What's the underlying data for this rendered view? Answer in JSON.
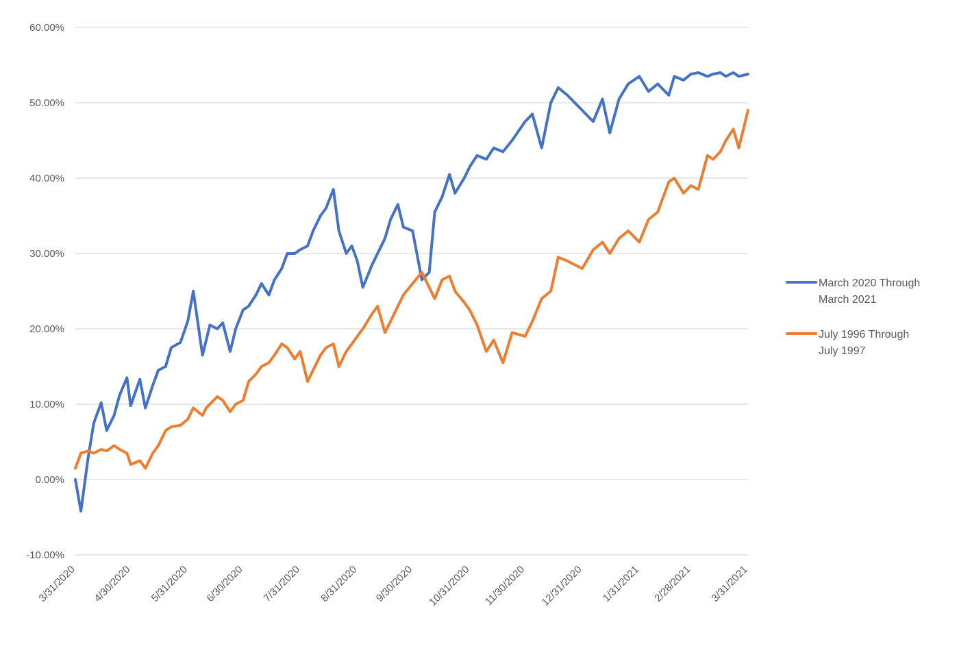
{
  "chart_data": {
    "type": "line",
    "title": "",
    "xlabel": "",
    "ylabel": "",
    "ylim": [
      -10,
      60
    ],
    "y_unit": "%",
    "y_ticks": [
      -10,
      0,
      10,
      20,
      30,
      40,
      50,
      60
    ],
    "y_tick_labels": [
      "-10.00%",
      "0.00%",
      "10.00%",
      "20.00%",
      "30.00%",
      "40.00%",
      "50.00%",
      "60.00%"
    ],
    "x_tick_labels": [
      "3/31/2020",
      "4/30/2020",
      "5/31/2020",
      "6/30/2020",
      "7/31/2020",
      "8/31/2020",
      "9/30/2020",
      "10/31/2020",
      "11/30/2020",
      "12/31/2020",
      "1/31/2021",
      "2/28/2021",
      "3/31/2021"
    ],
    "grid": true,
    "legend_position": "right",
    "series": [
      {
        "name": "March 2020 Through March 2021",
        "legend_lines": [
          "March 2020 Through",
          "March 2021"
        ],
        "color": "#4472C4",
        "x": [
          "3/31/2020",
          "4/3/2020",
          "4/7/2020",
          "4/10/2020",
          "4/14/2020",
          "4/17/2020",
          "4/21/2020",
          "4/24/2020",
          "4/28/2020",
          "4/30/2020",
          "5/5/2020",
          "5/8/2020",
          "5/12/2020",
          "5/15/2020",
          "5/19/2020",
          "5/22/2020",
          "5/27/2020",
          "5/31/2020",
          "6/3/2020",
          "6/8/2020",
          "6/10/2020",
          "6/12/2020",
          "6/16/2020",
          "6/19/2020",
          "6/23/2020",
          "6/26/2020",
          "6/30/2020",
          "7/3/2020",
          "7/7/2020",
          "7/10/2020",
          "7/14/2020",
          "7/17/2020",
          "7/21/2020",
          "7/24/2020",
          "7/28/2020",
          "7/31/2020",
          "8/4/2020",
          "8/7/2020",
          "8/11/2020",
          "8/14/2020",
          "8/18/2020",
          "8/21/2020",
          "8/25/2020",
          "8/28/2020",
          "8/31/2020",
          "9/3/2020",
          "9/8/2020",
          "9/11/2020",
          "9/15/2020",
          "9/18/2020",
          "9/22/2020",
          "9/25/2020",
          "9/30/2020",
          "10/5/2020",
          "10/9/2020",
          "10/12/2020",
          "10/16/2020",
          "10/20/2020",
          "10/23/2020",
          "10/28/2020",
          "10/31/2020",
          "11/4/2020",
          "11/9/2020",
          "11/13/2020",
          "11/18/2020",
          "11/23/2020",
          "11/30/2020",
          "12/4/2020",
          "12/9/2020",
          "12/14/2020",
          "12/18/2020",
          "12/23/2020",
          "12/31/2020",
          "1/6/2021",
          "1/11/2021",
          "1/15/2021",
          "1/20/2021",
          "1/25/2021",
          "1/31/2021",
          "2/5/2021",
          "2/10/2021",
          "2/16/2021",
          "2/19/2021",
          "2/24/2021",
          "2/28/2021",
          "3/4/2021",
          "3/9/2021",
          "3/12/2021",
          "3/16/2021",
          "3/19/2021",
          "3/23/2021",
          "3/26/2021",
          "3/31/2021"
        ],
        "values": [
          0.0,
          -4.2,
          3.0,
          7.5,
          10.2,
          6.5,
          8.5,
          11.2,
          13.5,
          9.8,
          13.3,
          9.5,
          12.5,
          14.5,
          15.0,
          17.5,
          18.2,
          21.0,
          25.0,
          16.5,
          18.5,
          20.5,
          20.0,
          20.8,
          17.0,
          20.0,
          22.5,
          23.0,
          24.5,
          26.0,
          24.5,
          26.5,
          28.0,
          30.0,
          30.0,
          30.5,
          31.0,
          33.0,
          35.0,
          36.0,
          38.5,
          33.0,
          30.0,
          31.0,
          29.0,
          25.5,
          28.5,
          30.0,
          32.0,
          34.5,
          36.5,
          33.5,
          33.0,
          26.5,
          27.5,
          35.5,
          37.5,
          40.5,
          38.0,
          40.0,
          41.5,
          43.0,
          42.5,
          44.0,
          43.5,
          45.0,
          47.5,
          48.5,
          44.0,
          50.0,
          52.0,
          51.0,
          49.0,
          47.5,
          50.5,
          46.0,
          50.5,
          52.5,
          53.5,
          51.5,
          52.5,
          51.0,
          53.5,
          53.0,
          53.8,
          54.0,
          53.5,
          53.8,
          54.0,
          53.5,
          54.0,
          53.5,
          53.8
        ]
      },
      {
        "name": "July 1996 Through July 1997",
        "legend_lines": [
          "July 1996 Through",
          "July 1997"
        ],
        "color": "#ED7D31",
        "x": [
          "3/31/2020",
          "4/3/2020",
          "4/7/2020",
          "4/10/2020",
          "4/14/2020",
          "4/17/2020",
          "4/21/2020",
          "4/24/2020",
          "4/28/2020",
          "4/30/2020",
          "5/5/2020",
          "5/8/2020",
          "5/12/2020",
          "5/15/2020",
          "5/19/2020",
          "5/22/2020",
          "5/27/2020",
          "5/31/2020",
          "6/3/2020",
          "6/8/2020",
          "6/10/2020",
          "6/12/2020",
          "6/16/2020",
          "6/19/2020",
          "6/23/2020",
          "6/26/2020",
          "6/30/2020",
          "7/3/2020",
          "7/7/2020",
          "7/10/2020",
          "7/14/2020",
          "7/17/2020",
          "7/21/2020",
          "7/24/2020",
          "7/28/2020",
          "7/31/2020",
          "8/4/2020",
          "8/7/2020",
          "8/11/2020",
          "8/14/2020",
          "8/18/2020",
          "8/21/2020",
          "8/25/2020",
          "8/28/2020",
          "8/31/2020",
          "9/3/2020",
          "9/8/2020",
          "9/11/2020",
          "9/15/2020",
          "9/18/2020",
          "9/22/2020",
          "9/25/2020",
          "9/30/2020",
          "10/5/2020",
          "10/9/2020",
          "10/12/2020",
          "10/16/2020",
          "10/20/2020",
          "10/23/2020",
          "10/28/2020",
          "10/31/2020",
          "11/4/2020",
          "11/9/2020",
          "11/13/2020",
          "11/18/2020",
          "11/23/2020",
          "11/30/2020",
          "12/4/2020",
          "12/9/2020",
          "12/14/2020",
          "12/18/2020",
          "12/23/2020",
          "12/31/2020",
          "1/6/2021",
          "1/11/2021",
          "1/15/2021",
          "1/20/2021",
          "1/25/2021",
          "1/31/2021",
          "2/5/2021",
          "2/10/2021",
          "2/16/2021",
          "2/19/2021",
          "2/24/2021",
          "2/28/2021",
          "3/4/2021",
          "3/9/2021",
          "3/12/2021",
          "3/16/2021",
          "3/19/2021",
          "3/23/2021",
          "3/26/2021",
          "3/31/2021"
        ],
        "values": [
          1.5,
          3.5,
          3.8,
          3.5,
          4.0,
          3.8,
          4.5,
          4.0,
          3.5,
          2.0,
          2.5,
          1.5,
          3.5,
          4.5,
          6.5,
          7.0,
          7.2,
          8.0,
          9.5,
          8.5,
          9.5,
          10.0,
          11.0,
          10.5,
          9.0,
          10.0,
          10.5,
          13.0,
          14.0,
          15.0,
          15.5,
          16.5,
          18.0,
          17.5,
          16.0,
          17.0,
          13.0,
          14.5,
          16.5,
          17.5,
          18.0,
          15.0,
          17.0,
          18.0,
          19.0,
          20.0,
          22.0,
          23.0,
          19.5,
          21.0,
          23.0,
          24.5,
          26.0,
          27.5,
          25.5,
          24.0,
          26.5,
          27.0,
          25.0,
          23.5,
          22.5,
          20.5,
          17.0,
          18.5,
          15.5,
          19.5,
          19.0,
          21.0,
          24.0,
          25.0,
          29.5,
          29.0,
          28.0,
          30.5,
          31.5,
          30.0,
          32.0,
          33.0,
          31.5,
          34.5,
          35.5,
          39.5,
          40.0,
          38.0,
          39.0,
          38.5,
          43.0,
          42.5,
          43.5,
          45.0,
          46.5,
          44.0,
          49.0
        ]
      }
    ]
  }
}
